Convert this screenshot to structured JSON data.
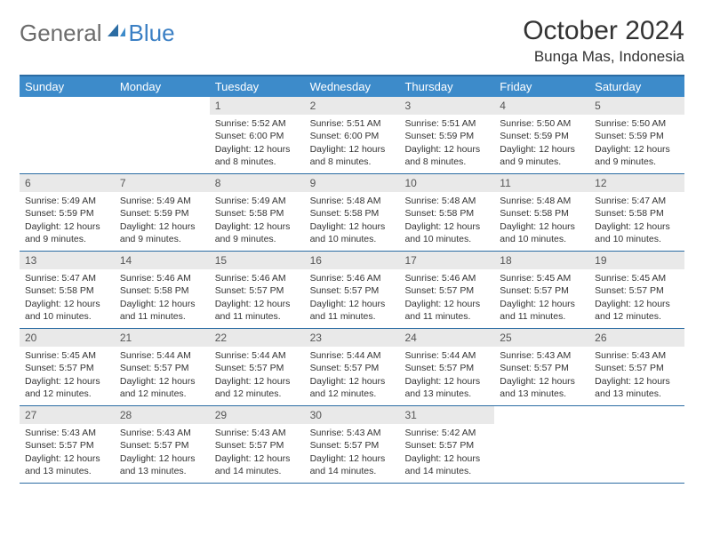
{
  "brand": {
    "general": "General",
    "blue": "Blue"
  },
  "title": "October 2024",
  "location": "Bunga Mas, Indonesia",
  "colors": {
    "header_bg": "#3d8bca",
    "border": "#2b6ca3",
    "daynum_bg": "#e9e9e9",
    "logo_gray": "#6b6b6b",
    "logo_blue": "#3a7fc4"
  },
  "weekdays": [
    "Sunday",
    "Monday",
    "Tuesday",
    "Wednesday",
    "Thursday",
    "Friday",
    "Saturday"
  ],
  "weeks": [
    [
      null,
      null,
      {
        "n": "1",
        "sr": "Sunrise: 5:52 AM",
        "ss": "Sunset: 6:00 PM",
        "dl": "Daylight: 12 hours and 8 minutes."
      },
      {
        "n": "2",
        "sr": "Sunrise: 5:51 AM",
        "ss": "Sunset: 6:00 PM",
        "dl": "Daylight: 12 hours and 8 minutes."
      },
      {
        "n": "3",
        "sr": "Sunrise: 5:51 AM",
        "ss": "Sunset: 5:59 PM",
        "dl": "Daylight: 12 hours and 8 minutes."
      },
      {
        "n": "4",
        "sr": "Sunrise: 5:50 AM",
        "ss": "Sunset: 5:59 PM",
        "dl": "Daylight: 12 hours and 9 minutes."
      },
      {
        "n": "5",
        "sr": "Sunrise: 5:50 AM",
        "ss": "Sunset: 5:59 PM",
        "dl": "Daylight: 12 hours and 9 minutes."
      }
    ],
    [
      {
        "n": "6",
        "sr": "Sunrise: 5:49 AM",
        "ss": "Sunset: 5:59 PM",
        "dl": "Daylight: 12 hours and 9 minutes."
      },
      {
        "n": "7",
        "sr": "Sunrise: 5:49 AM",
        "ss": "Sunset: 5:59 PM",
        "dl": "Daylight: 12 hours and 9 minutes."
      },
      {
        "n": "8",
        "sr": "Sunrise: 5:49 AM",
        "ss": "Sunset: 5:58 PM",
        "dl": "Daylight: 12 hours and 9 minutes."
      },
      {
        "n": "9",
        "sr": "Sunrise: 5:48 AM",
        "ss": "Sunset: 5:58 PM",
        "dl": "Daylight: 12 hours and 10 minutes."
      },
      {
        "n": "10",
        "sr": "Sunrise: 5:48 AM",
        "ss": "Sunset: 5:58 PM",
        "dl": "Daylight: 12 hours and 10 minutes."
      },
      {
        "n": "11",
        "sr": "Sunrise: 5:48 AM",
        "ss": "Sunset: 5:58 PM",
        "dl": "Daylight: 12 hours and 10 minutes."
      },
      {
        "n": "12",
        "sr": "Sunrise: 5:47 AM",
        "ss": "Sunset: 5:58 PM",
        "dl": "Daylight: 12 hours and 10 minutes."
      }
    ],
    [
      {
        "n": "13",
        "sr": "Sunrise: 5:47 AM",
        "ss": "Sunset: 5:58 PM",
        "dl": "Daylight: 12 hours and 10 minutes."
      },
      {
        "n": "14",
        "sr": "Sunrise: 5:46 AM",
        "ss": "Sunset: 5:58 PM",
        "dl": "Daylight: 12 hours and 11 minutes."
      },
      {
        "n": "15",
        "sr": "Sunrise: 5:46 AM",
        "ss": "Sunset: 5:57 PM",
        "dl": "Daylight: 12 hours and 11 minutes."
      },
      {
        "n": "16",
        "sr": "Sunrise: 5:46 AM",
        "ss": "Sunset: 5:57 PM",
        "dl": "Daylight: 12 hours and 11 minutes."
      },
      {
        "n": "17",
        "sr": "Sunrise: 5:46 AM",
        "ss": "Sunset: 5:57 PM",
        "dl": "Daylight: 12 hours and 11 minutes."
      },
      {
        "n": "18",
        "sr": "Sunrise: 5:45 AM",
        "ss": "Sunset: 5:57 PM",
        "dl": "Daylight: 12 hours and 11 minutes."
      },
      {
        "n": "19",
        "sr": "Sunrise: 5:45 AM",
        "ss": "Sunset: 5:57 PM",
        "dl": "Daylight: 12 hours and 12 minutes."
      }
    ],
    [
      {
        "n": "20",
        "sr": "Sunrise: 5:45 AM",
        "ss": "Sunset: 5:57 PM",
        "dl": "Daylight: 12 hours and 12 minutes."
      },
      {
        "n": "21",
        "sr": "Sunrise: 5:44 AM",
        "ss": "Sunset: 5:57 PM",
        "dl": "Daylight: 12 hours and 12 minutes."
      },
      {
        "n": "22",
        "sr": "Sunrise: 5:44 AM",
        "ss": "Sunset: 5:57 PM",
        "dl": "Daylight: 12 hours and 12 minutes."
      },
      {
        "n": "23",
        "sr": "Sunrise: 5:44 AM",
        "ss": "Sunset: 5:57 PM",
        "dl": "Daylight: 12 hours and 12 minutes."
      },
      {
        "n": "24",
        "sr": "Sunrise: 5:44 AM",
        "ss": "Sunset: 5:57 PM",
        "dl": "Daylight: 12 hours and 13 minutes."
      },
      {
        "n": "25",
        "sr": "Sunrise: 5:43 AM",
        "ss": "Sunset: 5:57 PM",
        "dl": "Daylight: 12 hours and 13 minutes."
      },
      {
        "n": "26",
        "sr": "Sunrise: 5:43 AM",
        "ss": "Sunset: 5:57 PM",
        "dl": "Daylight: 12 hours and 13 minutes."
      }
    ],
    [
      {
        "n": "27",
        "sr": "Sunrise: 5:43 AM",
        "ss": "Sunset: 5:57 PM",
        "dl": "Daylight: 12 hours and 13 minutes."
      },
      {
        "n": "28",
        "sr": "Sunrise: 5:43 AM",
        "ss": "Sunset: 5:57 PM",
        "dl": "Daylight: 12 hours and 13 minutes."
      },
      {
        "n": "29",
        "sr": "Sunrise: 5:43 AM",
        "ss": "Sunset: 5:57 PM",
        "dl": "Daylight: 12 hours and 14 minutes."
      },
      {
        "n": "30",
        "sr": "Sunrise: 5:43 AM",
        "ss": "Sunset: 5:57 PM",
        "dl": "Daylight: 12 hours and 14 minutes."
      },
      {
        "n": "31",
        "sr": "Sunrise: 5:42 AM",
        "ss": "Sunset: 5:57 PM",
        "dl": "Daylight: 12 hours and 14 minutes."
      },
      null,
      null
    ]
  ]
}
